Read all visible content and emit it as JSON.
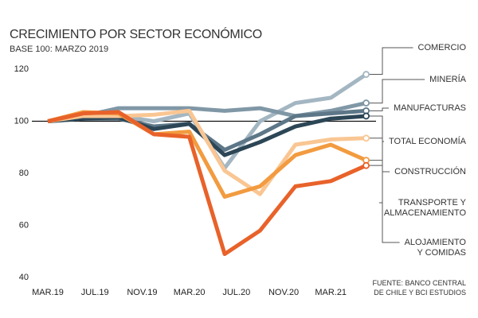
{
  "chart_data": {
    "type": "line",
    "title": "CRECIMIENTO POR SECTOR ECONÓMICO",
    "subtitle": "BASE 100: MARZO 2019",
    "source": "FUENTE: BANCO CENTRAL\nDE CHILE Y BCI ESTUDIOS",
    "x": [
      0,
      3,
      6,
      9,
      12,
      15,
      18,
      21,
      24,
      27
    ],
    "xlim": [
      -1,
      28
    ],
    "xticks": [
      {
        "value": 0,
        "label": "MAR.19"
      },
      {
        "value": 4,
        "label": "JUL.19"
      },
      {
        "value": 8,
        "label": "NOV.19"
      },
      {
        "value": 12,
        "label": "MAR.20"
      },
      {
        "value": 16,
        "label": "JUL.20"
      },
      {
        "value": 20,
        "label": "NOV.20"
      },
      {
        "value": 24,
        "label": "MAR.21"
      }
    ],
    "ylim": [
      40,
      120
    ],
    "yticks": [
      40,
      60,
      80,
      100,
      120
    ],
    "reference_line": 100,
    "grid": false,
    "series": [
      {
        "name": "COMERCIO",
        "color": "#a3b6c2",
        "values": [
          100,
          101,
          102,
          100,
          103,
          82,
          100,
          107,
          109,
          118
        ]
      },
      {
        "name": "MINERÍA",
        "color": "#8097a6",
        "values": [
          100,
          102,
          105,
          105,
          105,
          104,
          105,
          102,
          104,
          107
        ]
      },
      {
        "name": "MANUFACTURAS",
        "color": "#5d7788",
        "values": [
          100,
          101,
          101,
          98,
          99,
          89,
          95,
          102,
          103,
          104
        ]
      },
      {
        "name": "TOTAL ECONOMÍA",
        "color": "#2c4656",
        "values": [
          100,
          101,
          101.5,
          97,
          99,
          87,
          92,
          98,
          101,
          102
        ]
      },
      {
        "name": "CONSTRUCCIÓN",
        "color": "#f9c693",
        "values": [
          100,
          102,
          102,
          102.5,
          104,
          81,
          72,
          91,
          93,
          93.5
        ]
      },
      {
        "name": "TRANSPORTE Y\nALMACENAMIENTO",
        "color": "#f29b40",
        "values": [
          100,
          103.5,
          103,
          95,
          96,
          71,
          75,
          87,
          91,
          85
        ]
      },
      {
        "name": "ALOJAMIENTO\nY COMIDAS",
        "color": "#e8622a",
        "values": [
          100,
          103,
          103.5,
          95,
          94,
          49,
          58,
          75,
          77,
          83
        ]
      }
    ]
  }
}
